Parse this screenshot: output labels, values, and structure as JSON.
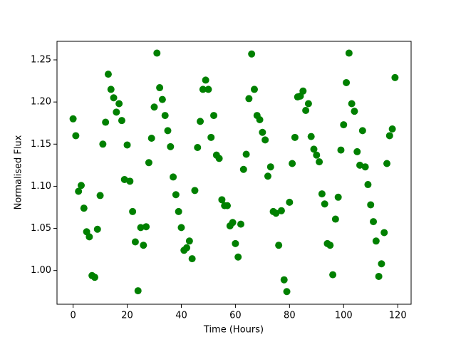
{
  "chart_data": {
    "type": "scatter",
    "xlabel": "Time (Hours)",
    "ylabel": "Normalised Flux",
    "color": "#008000",
    "x": [
      0,
      1,
      2,
      3,
      4,
      5,
      6,
      7,
      8,
      9,
      10,
      11,
      12,
      13,
      14,
      15,
      16,
      17,
      18,
      19,
      20,
      21,
      22,
      23,
      24,
      25,
      26,
      27,
      28,
      29,
      30,
      31,
      32,
      33,
      34,
      35,
      36,
      37,
      38,
      39,
      40,
      41,
      42,
      43,
      44,
      45,
      46,
      47,
      48,
      49,
      50,
      51,
      52,
      53,
      54,
      55,
      56,
      57,
      58,
      59,
      60,
      61,
      62,
      63,
      64,
      65,
      66,
      67,
      68,
      69,
      70,
      71,
      72,
      73,
      74,
      75,
      76,
      77,
      78,
      79,
      80,
      81,
      82,
      83,
      84,
      85,
      86,
      87,
      88,
      89,
      90,
      91,
      92,
      93,
      94,
      95,
      96,
      97,
      98,
      99,
      100,
      101,
      102,
      103,
      104,
      105,
      106,
      107,
      108,
      109,
      110,
      111,
      112,
      113,
      114,
      115,
      116,
      117,
      118,
      119
    ],
    "values": [
      1.18,
      1.16,
      1.094,
      1.101,
      1.074,
      1.046,
      1.04,
      0.994,
      0.992,
      1.049,
      1.089,
      1.15,
      1.176,
      1.233,
      1.215,
      1.205,
      1.188,
      1.198,
      1.178,
      1.108,
      1.149,
      1.106,
      1.07,
      1.034,
      0.976,
      1.051,
      1.03,
      1.052,
      1.128,
      1.157,
      1.194,
      1.258,
      1.217,
      1.203,
      1.184,
      1.166,
      1.147,
      1.111,
      1.09,
      1.07,
      1.051,
      1.024,
      1.027,
      1.035,
      1.014,
      1.095,
      1.146,
      1.177,
      1.215,
      1.226,
      1.215,
      1.158,
      1.184,
      1.137,
      1.133,
      1.084,
      1.077,
      1.077,
      1.053,
      1.057,
      1.032,
      1.016,
      1.055,
      1.12,
      1.138,
      1.204,
      1.257,
      1.215,
      1.184,
      1.179,
      1.164,
      1.155,
      1.112,
      1.123,
      1.07,
      1.068,
      1.03,
      1.071,
      0.989,
      0.975,
      1.081,
      1.127,
      1.158,
      1.206,
      1.207,
      1.213,
      1.19,
      1.198,
      1.159,
      1.144,
      1.137,
      1.129,
      1.091,
      1.079,
      1.032,
      1.03,
      0.995,
      1.061,
      1.087,
      1.143,
      1.173,
      1.223,
      1.258,
      1.198,
      1.189,
      1.141,
      1.125,
      1.166,
      1.123,
      1.102,
      1.078,
      1.058,
      1.035,
      0.993,
      1.008,
      1.045,
      1.127,
      1.16,
      1.168,
      1.229
    ],
    "xlim": [
      -5.95,
      124.95
    ],
    "xticks": [
      0,
      20,
      40,
      60,
      80,
      100,
      120
    ],
    "ylim": [
      0.96,
      1.272
    ],
    "yticks": [
      {
        "value": 1,
        "label": "1.00"
      },
      1.05,
      {
        "value": 1.1,
        "label": "1.10"
      },
      1.15,
      {
        "value": 1.2,
        "label": "1.20"
      },
      1.25
    ],
    "grid": false
  }
}
